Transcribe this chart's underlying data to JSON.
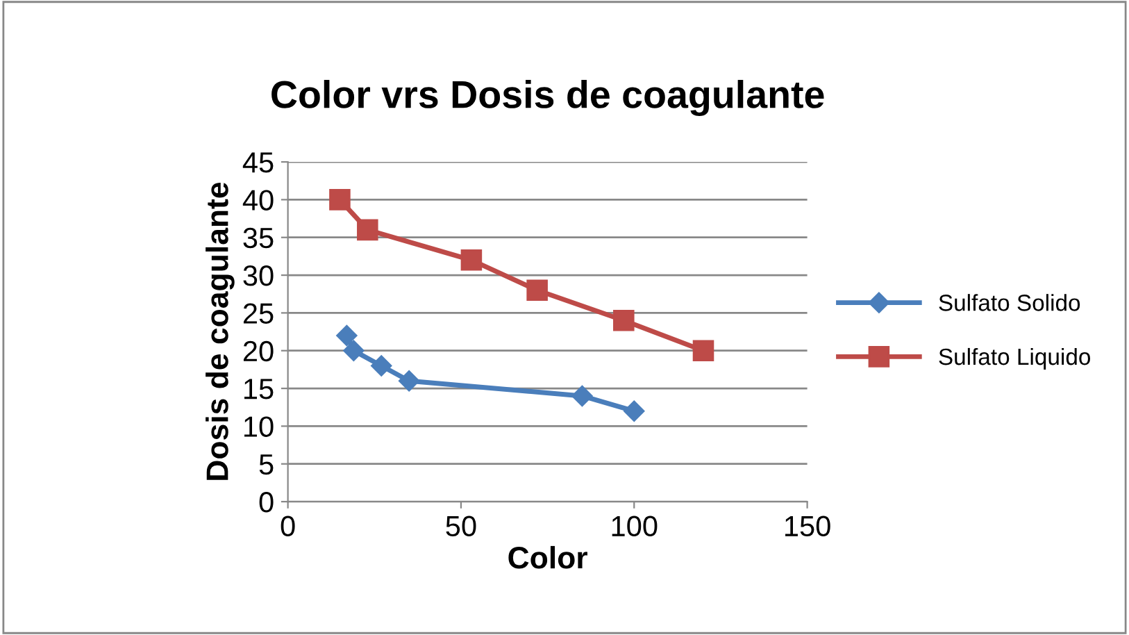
{
  "chart_data": {
    "type": "line",
    "title": "Color vrs Dosis de coagulante",
    "xlabel": "Color",
    "ylabel": "Dosis de coagulante",
    "series": [
      {
        "name": "Sulfato Solido",
        "color": "#4a7ebb",
        "marker": "diamond",
        "x": [
          17,
          19,
          27,
          35,
          85,
          100
        ],
        "values": [
          22,
          20,
          18,
          16,
          14,
          12
        ]
      },
      {
        "name": "Sulfato Liquido",
        "color": "#be4b48",
        "marker": "square",
        "x": [
          15,
          23,
          53,
          72,
          97,
          120
        ],
        "values": [
          40,
          36,
          32,
          28,
          24,
          20
        ]
      }
    ],
    "xlim": [
      0,
      150
    ],
    "xticks": [
      0,
      50,
      100,
      150
    ],
    "ylim": [
      0,
      45
    ],
    "yticks": [
      0,
      5,
      10,
      15,
      20,
      25,
      30,
      35,
      40,
      45
    ],
    "grid": "y",
    "legend": "right"
  }
}
